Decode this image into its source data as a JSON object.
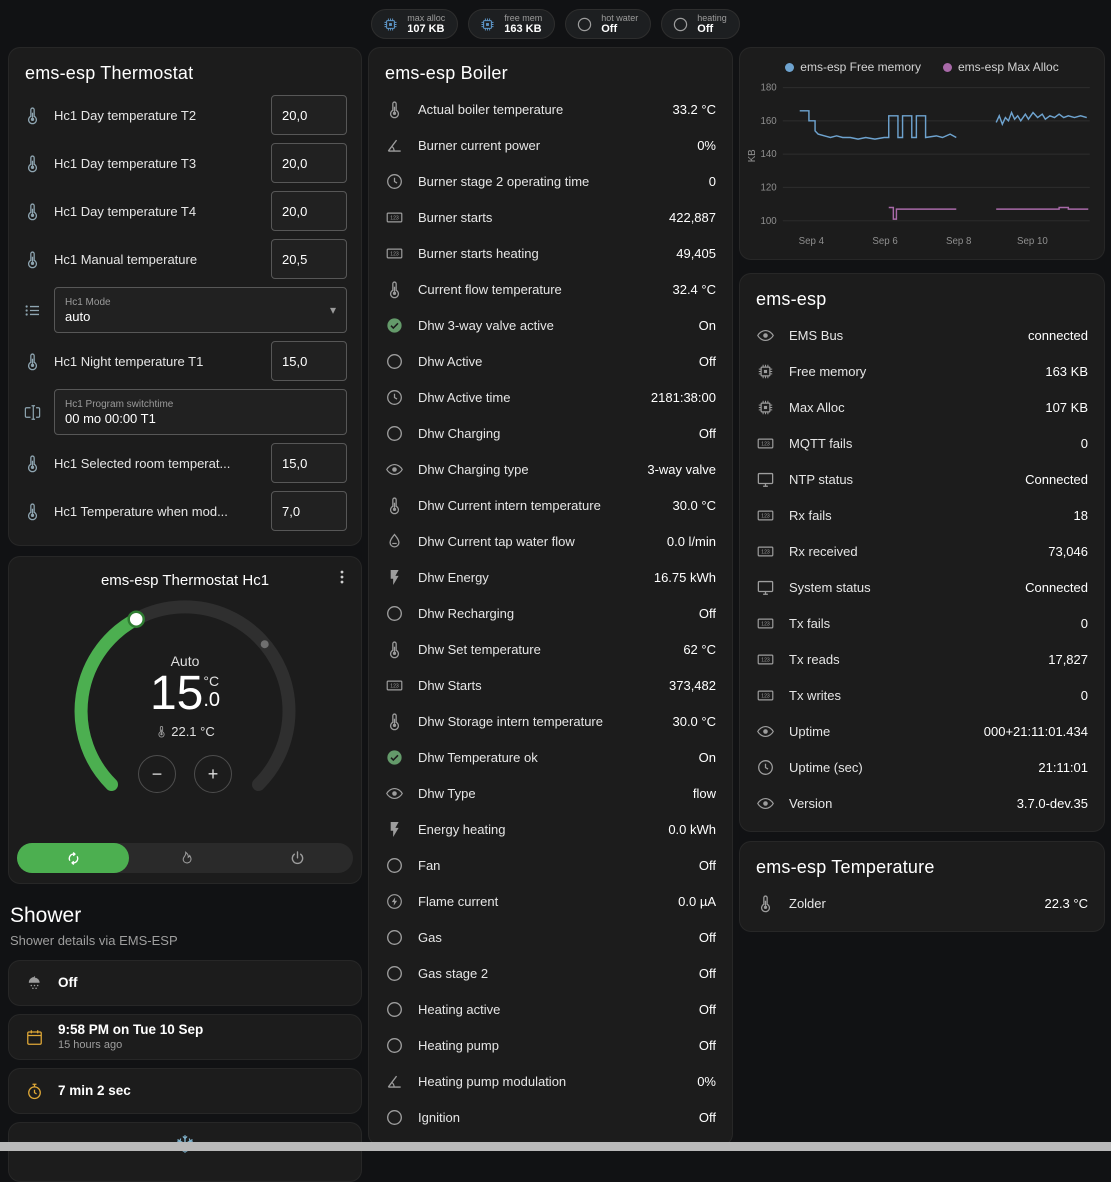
{
  "colors": {
    "background": "#111214",
    "card": "#1c1c1c",
    "accent_green": "#4caf50",
    "icon_default": "#9d9d9d",
    "icon_steel": "#8fa6b2",
    "icon_amber": "#dfa837",
    "icon_blue": "#5d96c8",
    "icon_snow": "#7fb2cc"
  },
  "topbar": {
    "chips": [
      {
        "icon": "chip",
        "tone": "blue",
        "label": "max alloc",
        "value": "107 KB"
      },
      {
        "icon": "chip",
        "tone": "blue",
        "label": "free mem",
        "value": "163 KB"
      },
      {
        "icon": "circle",
        "tone": "default",
        "label": "hot water",
        "value": "Off"
      },
      {
        "icon": "circle",
        "tone": "default",
        "label": "heating",
        "value": "Off"
      }
    ]
  },
  "thermostat_card": {
    "title": "ems-esp Thermostat",
    "rows": [
      {
        "type": "number",
        "icon": "thermometer",
        "tone": "steel",
        "label": "Hc1 Day temperature T2",
        "value": "20,0"
      },
      {
        "type": "number",
        "icon": "thermometer",
        "tone": "steel",
        "label": "Hc1 Day temperature T3",
        "value": "20,0"
      },
      {
        "type": "number",
        "icon": "thermometer",
        "tone": "steel",
        "label": "Hc1 Day temperature T4",
        "value": "20,0"
      },
      {
        "type": "number",
        "icon": "thermometer",
        "tone": "steel",
        "label": "Hc1 Manual temperature",
        "value": "20,5"
      },
      {
        "type": "select",
        "icon": "list",
        "tone": "steel",
        "label": "Hc1 Mode",
        "value": "auto"
      },
      {
        "type": "number",
        "icon": "thermometer",
        "tone": "steel",
        "label": "Hc1 Night temperature T1",
        "value": "15,0"
      },
      {
        "type": "text",
        "icon": "textbox",
        "tone": "steel",
        "label": "Hc1 Program switchtime",
        "value": "00 mo 00:00 T1"
      },
      {
        "type": "number",
        "icon": "thermometer",
        "tone": "steel",
        "label": "Hc1 Selected room temperat...",
        "value": "15,0"
      },
      {
        "type": "number",
        "icon": "thermometer",
        "tone": "steel",
        "label": "Hc1 Temperature when mod...",
        "value": "7,0"
      }
    ]
  },
  "hc1_card": {
    "title": "ems-esp Thermostat Hc1",
    "mode": "Auto",
    "temp": "15",
    "temp_decimal": ".0",
    "unit": "°C",
    "current": "22.1 °C",
    "decrease": "−",
    "increase": "+"
  },
  "shower": {
    "title": "Shower",
    "subtitle": "Shower details via EMS-ESP",
    "rows": [
      {
        "icon": "shower",
        "tone": "default",
        "text": "Off"
      },
      {
        "icon": "calendar",
        "tone": "amber",
        "text": "9:58 PM on Tue 10 Sep",
        "secondary": "15 hours ago"
      },
      {
        "icon": "timer",
        "tone": "amber",
        "text": "7 min 2 sec"
      }
    ],
    "partial_icon": "snowflake"
  },
  "boiler_card": {
    "title": "ems-esp Boiler",
    "rows": [
      {
        "icon": "thermometer",
        "tone": "default",
        "label": "Actual boiler temperature",
        "value": "33.2 °C"
      },
      {
        "icon": "angle",
        "tone": "default",
        "label": "Burner current power",
        "value": "0%"
      },
      {
        "icon": "clock",
        "tone": "default",
        "label": "Burner stage 2 operating time",
        "value": "0"
      },
      {
        "icon": "counter",
        "tone": "default",
        "label": "Burner starts",
        "value": "422,887"
      },
      {
        "icon": "counter",
        "tone": "default",
        "label": "Burner starts heating",
        "value": "49,405"
      },
      {
        "icon": "thermometer",
        "tone": "default",
        "label": "Current flow temperature",
        "value": "32.4 °C"
      },
      {
        "icon": "check-circle",
        "tone": "green",
        "label": "Dhw 3-way valve active",
        "value": "On"
      },
      {
        "icon": "circle",
        "tone": "default",
        "label": "Dhw Active",
        "value": "Off"
      },
      {
        "icon": "clock",
        "tone": "default",
        "label": "Dhw Active time",
        "value": "2181:38:00"
      },
      {
        "icon": "circle",
        "tone": "default",
        "label": "Dhw Charging",
        "value": "Off"
      },
      {
        "icon": "eye",
        "tone": "default",
        "label": "Dhw Charging type",
        "value": "3-way valve"
      },
      {
        "icon": "thermometer",
        "tone": "default",
        "label": "Dhw Current intern temperature",
        "value": "30.0 °C"
      },
      {
        "icon": "water-flow",
        "tone": "default",
        "label": "Dhw Current tap water flow",
        "value": "0.0 l/min"
      },
      {
        "icon": "flash",
        "tone": "default",
        "label": "Dhw Energy",
        "value": "16.75 kWh"
      },
      {
        "icon": "circle",
        "tone": "default",
        "label": "Dhw Recharging",
        "value": "Off"
      },
      {
        "icon": "thermometer",
        "tone": "default",
        "label": "Dhw Set temperature",
        "value": "62 °C"
      },
      {
        "icon": "counter",
        "tone": "default",
        "label": "Dhw Starts",
        "value": "373,482"
      },
      {
        "icon": "thermometer",
        "tone": "default",
        "label": "Dhw Storage intern temperature",
        "value": "30.0 °C"
      },
      {
        "icon": "check-circle",
        "tone": "green",
        "label": "Dhw Temperature ok",
        "value": "On"
      },
      {
        "icon": "eye",
        "tone": "default",
        "label": "Dhw Type",
        "value": "flow"
      },
      {
        "icon": "flash",
        "tone": "default",
        "label": "Energy heating",
        "value": "0.0 kWh"
      },
      {
        "icon": "circle",
        "tone": "default",
        "label": "Fan",
        "value": "Off"
      },
      {
        "icon": "flash-circle",
        "tone": "default",
        "label": "Flame current",
        "value": "0.0 µA"
      },
      {
        "icon": "circle",
        "tone": "default",
        "label": "Gas",
        "value": "Off"
      },
      {
        "icon": "circle",
        "tone": "default",
        "label": "Gas stage 2",
        "value": "Off"
      },
      {
        "icon": "circle",
        "tone": "default",
        "label": "Heating active",
        "value": "Off"
      },
      {
        "icon": "circle",
        "tone": "default",
        "label": "Heating pump",
        "value": "Off"
      },
      {
        "icon": "angle",
        "tone": "default",
        "label": "Heating pump modulation",
        "value": "0%"
      },
      {
        "icon": "circle",
        "tone": "default",
        "label": "Ignition",
        "value": "Off"
      }
    ]
  },
  "emsesp_card": {
    "title": "ems-esp",
    "rows": [
      {
        "icon": "eye",
        "tone": "default",
        "label": "EMS Bus",
        "value": "connected"
      },
      {
        "icon": "chip",
        "tone": "default",
        "label": "Free memory",
        "value": "163 KB"
      },
      {
        "icon": "chip",
        "tone": "default",
        "label": "Max Alloc",
        "value": "107 KB"
      },
      {
        "icon": "counter",
        "tone": "default",
        "label": "MQTT fails",
        "value": "0"
      },
      {
        "icon": "monitor",
        "tone": "default",
        "label": "NTP status",
        "value": "Connected"
      },
      {
        "icon": "counter",
        "tone": "default",
        "label": "Rx fails",
        "value": "18"
      },
      {
        "icon": "counter",
        "tone": "default",
        "label": "Rx received",
        "value": "73,046"
      },
      {
        "icon": "monitor",
        "tone": "default",
        "label": "System status",
        "value": "Connected"
      },
      {
        "icon": "counter",
        "tone": "default",
        "label": "Tx fails",
        "value": "0"
      },
      {
        "icon": "counter",
        "tone": "default",
        "label": "Tx reads",
        "value": "17,827"
      },
      {
        "icon": "counter",
        "tone": "default",
        "label": "Tx writes",
        "value": "0"
      },
      {
        "icon": "eye",
        "tone": "default",
        "label": "Uptime",
        "value": "000+21:11:01.434"
      },
      {
        "icon": "clock",
        "tone": "default",
        "label": "Uptime (sec)",
        "value": "21:11:01"
      },
      {
        "icon": "eye",
        "tone": "default",
        "label": "Version",
        "value": "3.7.0-dev.35"
      }
    ]
  },
  "temperature_card": {
    "title": "ems-esp Temperature",
    "rows": [
      {
        "icon": "thermometer",
        "tone": "default",
        "label": "Zolder",
        "value": "22.3 °C"
      }
    ]
  },
  "chart_data": {
    "type": "line",
    "title": "",
    "xlabel": "",
    "ylabel": "KB",
    "ylim": [
      96,
      182
    ],
    "yticks": [
      100,
      120,
      140,
      160,
      180
    ],
    "xticks": [
      "Sep 4",
      "Sep 6",
      "Sep 8",
      "Sep 10"
    ],
    "xtick_pos": [
      0.093,
      0.333,
      0.573,
      0.813
    ],
    "grid": true,
    "legend_position": "top",
    "series": [
      {
        "name": "ems-esp Free memory",
        "color": "#6ea3cf",
        "segments": [
          [
            [
              0.055,
              166
            ],
            [
              0.085,
              166
            ],
            [
              0.085,
              160
            ],
            [
              0.105,
              160
            ],
            [
              0.105,
              154
            ],
            [
              0.115,
              152
            ],
            [
              0.135,
              151
            ],
            [
              0.155,
              150
            ],
            [
              0.175,
              151
            ],
            [
              0.195,
              150
            ],
            [
              0.22,
              150
            ],
            [
              0.245,
              149
            ],
            [
              0.27,
              150
            ],
            [
              0.3,
              149
            ],
            [
              0.33,
              150
            ],
            [
              0.345,
              150
            ],
            [
              0.345,
              163
            ],
            [
              0.375,
              163
            ],
            [
              0.375,
              150
            ],
            [
              0.39,
              150
            ],
            [
              0.39,
              163
            ],
            [
              0.42,
              163
            ],
            [
              0.42,
              150
            ],
            [
              0.435,
              150
            ],
            [
              0.435,
              163
            ],
            [
              0.465,
              163
            ],
            [
              0.465,
              150
            ],
            [
              0.5,
              151
            ],
            [
              0.52,
              150
            ],
            [
              0.545,
              152
            ],
            [
              0.565,
              150
            ]
          ],
          [
            [
              0.695,
              159
            ],
            [
              0.705,
              163
            ],
            [
              0.715,
              158
            ],
            [
              0.725,
              162
            ],
            [
              0.735,
              160
            ],
            [
              0.745,
              165
            ],
            [
              0.755,
              161
            ],
            [
              0.765,
              163
            ],
            [
              0.775,
              160
            ],
            [
              0.79,
              164
            ],
            [
              0.8,
              161
            ],
            [
              0.815,
              165
            ],
            [
              0.83,
              162
            ],
            [
              0.845,
              164
            ],
            [
              0.855,
              161
            ],
            [
              0.87,
              163
            ],
            [
              0.885,
              162
            ],
            [
              0.9,
              164
            ],
            [
              0.915,
              162
            ],
            [
              0.93,
              163
            ],
            [
              0.95,
              162
            ],
            [
              0.97,
              163
            ],
            [
              0.99,
              162
            ]
          ]
        ]
      },
      {
        "name": "ems-esp Max Alloc",
        "color": "#a869a8",
        "segments": [
          [
            [
              0.345,
              108
            ],
            [
              0.36,
              108
            ],
            [
              0.36,
              101
            ],
            [
              0.37,
              101
            ],
            [
              0.37,
              107
            ],
            [
              0.565,
              107
            ]
          ],
          [
            [
              0.695,
              107
            ],
            [
              0.9,
              107
            ],
            [
              0.9,
              108
            ],
            [
              0.93,
              108
            ],
            [
              0.93,
              107
            ],
            [
              0.995,
              107
            ]
          ]
        ]
      }
    ]
  }
}
